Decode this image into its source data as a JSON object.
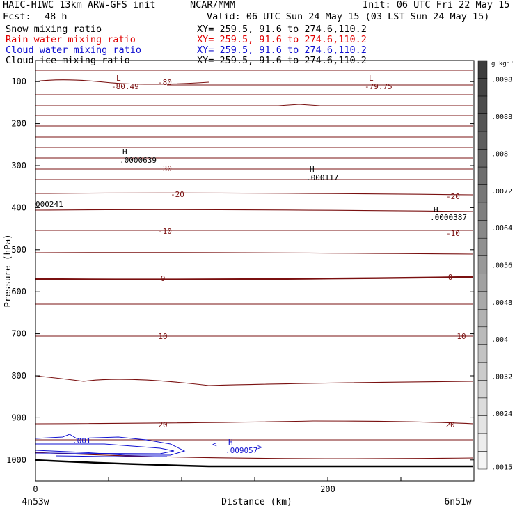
{
  "header": {
    "model": "HAIC-HIWC 13km ARW-GFS init",
    "org": "NCAR/MMM",
    "init": "Init: 06 UTC Fri 22 May 15",
    "fcst_label": "Fcst:",
    "fcst_value": "48 h",
    "valid": "Valid: 06 UTC Sun 24 May 15 (03 LST Sun 24 May 15)",
    "fields": [
      {
        "name": "Snow mixing ratio",
        "xy": "XY= 259.5, 91.6 to 274.6,110.2",
        "color": "#000000"
      },
      {
        "name": "Rain water mixing ratio",
        "xy": "XY= 259.5, 91.6 to 274.6,110.2",
        "color": "#e00000"
      },
      {
        "name": "Cloud water mixing ratio",
        "xy": "XY= 259.5, 91.6 to 274.6,110.2",
        "color": "#1010d0"
      },
      {
        "name": "Cloud ice mixing ratio",
        "xy": "XY= 259.5, 91.6 to 274.6,110.2",
        "color": "#000000"
      }
    ]
  },
  "chart_data": {
    "type": "cross-section",
    "xlabel": "Distance (km)",
    "ylabel": "Pressure (hPa)",
    "x_ticks": [
      0,
      200
    ],
    "x_range": [
      0,
      300
    ],
    "left_endpoint": "4n53w",
    "right_endpoint": "6n51w",
    "y_range": [
      1050,
      50
    ],
    "y_ticks": [
      100,
      200,
      300,
      400,
      500,
      600,
      700,
      800,
      900,
      1000
    ],
    "colorbar": {
      "unit": "g kg⁻¹",
      "labels": [
        ".0098",
        ".0088",
        ".008",
        ".0072",
        ".0064",
        ".0056",
        ".0048",
        ".004",
        ".0032",
        ".0024",
        ".0015"
      ]
    },
    "temperature_contour_labels": [
      "-80",
      "-30",
      "-20",
      "-20",
      "-10",
      "-10",
      "0",
      "0",
      "10",
      "10",
      "20",
      "20"
    ],
    "extrema": [
      {
        "type": "L",
        "value": "-80.49"
      },
      {
        "type": "L",
        "value": "-79.75"
      },
      {
        "type": "H",
        "value": ".0000639"
      },
      {
        "type": "H",
        "value": ".000117"
      },
      {
        "type": "H",
        "value": ".0000387"
      },
      {
        "type": "H",
        "value": ".009057"
      }
    ],
    "edge_label": "000241",
    "cloud_water_label": ".001",
    "cloud_water_marker_left": "<",
    "cloud_water_marker_right": ">"
  }
}
